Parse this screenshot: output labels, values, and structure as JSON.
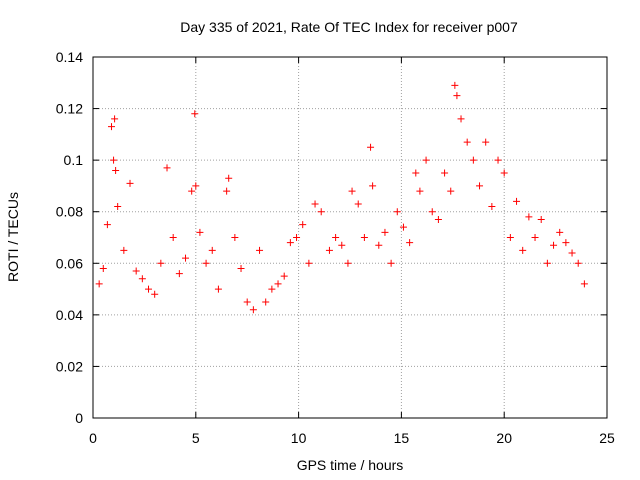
{
  "chart_data": {
    "type": "scatter",
    "title": "Day 335 of 2021, Rate Of TEC Index for receiver p007",
    "xlabel": "GPS time / hours",
    "ylabel": "ROTI / TECUs",
    "xlim": [
      0,
      25
    ],
    "ylim": [
      0,
      0.14
    ],
    "xticks": [
      0,
      5,
      10,
      15,
      20,
      25
    ],
    "yticks": [
      0,
      0.02,
      0.04,
      0.06,
      0.08,
      0.1,
      0.12,
      0.14
    ],
    "xtick_labels": [
      "0",
      "5",
      "10",
      "15",
      "20",
      "25"
    ],
    "ytick_labels": [
      "0",
      "0.02",
      "0.04",
      "0.06",
      "0.08",
      "0.1",
      "0.12",
      "0.14"
    ],
    "grid": true,
    "marker": "+",
    "color": "#ff0000",
    "series": [
      {
        "x": [
          0.3,
          0.5,
          0.7,
          0.9,
          1.0,
          1.05,
          1.1,
          1.2,
          1.5,
          1.8,
          2.1,
          2.4,
          2.7,
          3.0,
          3.3,
          3.6,
          3.9,
          4.2,
          4.5,
          4.8,
          4.95,
          5.0,
          5.2,
          5.5,
          5.8,
          6.1,
          6.5,
          6.6,
          6.9,
          7.2,
          7.5,
          7.8,
          8.1,
          8.4,
          8.7,
          9.0,
          9.3,
          9.6,
          9.9,
          10.2,
          10.5,
          10.8,
          11.1,
          11.5,
          11.8,
          12.1,
          12.4,
          12.6,
          12.9,
          13.2,
          13.5,
          13.6,
          13.9,
          14.2,
          14.5,
          14.8,
          15.1,
          15.4,
          15.7,
          15.9,
          16.2,
          16.5,
          16.8,
          17.1,
          17.4,
          17.6,
          17.7,
          17.9,
          18.2,
          18.5,
          18.8,
          19.1,
          19.4,
          19.7,
          20.0,
          20.3,
          20.6,
          20.9,
          21.2,
          21.5,
          21.8,
          22.1,
          22.4,
          22.7,
          23.0,
          23.3,
          23.6,
          23.9
        ],
        "y": [
          0.052,
          0.058,
          0.075,
          0.113,
          0.1,
          0.116,
          0.096,
          0.082,
          0.065,
          0.091,
          0.057,
          0.054,
          0.05,
          0.048,
          0.06,
          0.097,
          0.07,
          0.056,
          0.062,
          0.088,
          0.118,
          0.09,
          0.072,
          0.06,
          0.065,
          0.05,
          0.088,
          0.093,
          0.07,
          0.058,
          0.045,
          0.042,
          0.065,
          0.045,
          0.05,
          0.052,
          0.055,
          0.068,
          0.07,
          0.075,
          0.06,
          0.083,
          0.08,
          0.065,
          0.07,
          0.067,
          0.06,
          0.088,
          0.083,
          0.07,
          0.105,
          0.09,
          0.067,
          0.072,
          0.06,
          0.08,
          0.074,
          0.068,
          0.095,
          0.088,
          0.1,
          0.08,
          0.077,
          0.095,
          0.088,
          0.129,
          0.125,
          0.116,
          0.107,
          0.1,
          0.09,
          0.107,
          0.082,
          0.1,
          0.095,
          0.07,
          0.084,
          0.065,
          0.078,
          0.07,
          0.077,
          0.06,
          0.067,
          0.072,
          0.068,
          0.064,
          0.06,
          0.052
        ]
      }
    ]
  }
}
